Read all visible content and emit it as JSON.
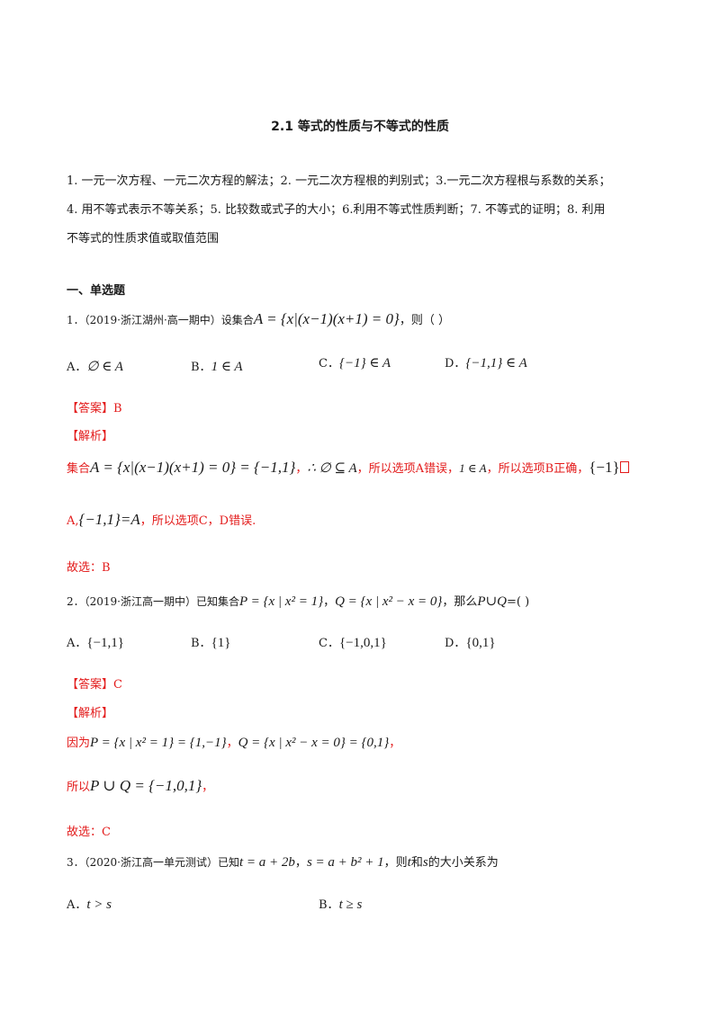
{
  "title": "2.1  等式的性质与不等式的性质",
  "intro": {
    "line1": "1. 一元一次方程、一元二次方程的解法；2. 一元二次方程根的判别式；3.一元二次方程根与系数的关系；",
    "line2": "4. 用不等式表示不等关系；5. 比较数或式子的大小；6.利用不等式性质判断；7. 不等式的证明；8. 利用",
    "line3": "不等式的性质求值或取值范围"
  },
  "section_heading": "一、单选题",
  "q1": {
    "stem": "1．（2019·浙江湖州·高一期中）设集合",
    "formula": "A = {x|(x−1)(x+1) = 0}",
    "tail": "，则（      ）",
    "options": [
      {
        "label": "A．",
        "expr": "∅ ∈ A"
      },
      {
        "label": "B．",
        "expr": "1 ∈ A"
      },
      {
        "label": "C．",
        "expr": "{−1} ∈ A"
      },
      {
        "label": "D．",
        "expr": "{−1,1} ∈ A"
      }
    ],
    "answer_tag": "【答案】B",
    "analysis_tag": "【解析】",
    "sol_l1_a": "集合",
    "sol_l1_f1": "A = {x|(x−1)(x+1) = 0} = {−1,1}",
    "sol_l1_b": "，",
    "sol_l1_f2": "∴ ∅ ⊆ A",
    "sol_l1_c": "，所以选项A错误，",
    "sol_l1_f3": "1 ∈ A",
    "sol_l1_d": "，所以选项B正确，",
    "sol_l1_f4": "{−1}",
    "sol_l2_a": "A,",
    "sol_l2_f1": "{−1,1}=A",
    "sol_l2_b": "，所以选项C，D错误.",
    "conclusion": "故选：B"
  },
  "q2": {
    "stem": "2．（2019·浙江高一期中）已知集合",
    "f1": "P = {x | x² = 1}",
    "mid": "，",
    "f2": "Q = {x | x² − x = 0}",
    "mid2": "，那么",
    "f3": "P∪Q",
    "tail": "=(      )",
    "options": [
      {
        "label": "A．",
        "expr": "{−1,1}"
      },
      {
        "label": "B．",
        "expr": "{1}"
      },
      {
        "label": "C．",
        "expr": "{−1,0,1}"
      },
      {
        "label": "D．",
        "expr": "{0,1}"
      }
    ],
    "answer_tag": "【答案】C",
    "analysis_tag": "【解析】",
    "sol_l1_a": "因为",
    "sol_l1_f1": "P = {x | x² = 1} = {1,−1}",
    "sol_l1_b": "，",
    "sol_l1_f2": "Q = {x | x² − x = 0} = {0,1}",
    "sol_l1_c": "，",
    "sol_l2_a": "所以",
    "sol_l2_f1": "P ∪ Q = {−1,0,1}",
    "sol_l2_b": "，",
    "conclusion": "故选：C"
  },
  "q3": {
    "stem": "3．（2020·浙江高一单元测试）已知",
    "f1": "t = a + 2b",
    "mid": "，",
    "f2": "s = a + b² + 1",
    "mid2": "，则",
    "f3": "t",
    "mid3": "和",
    "f4": "s",
    "tail": "的大小关系为",
    "options": [
      {
        "label": "A．",
        "expr": "t > s"
      },
      {
        "label": "B．",
        "expr": "t ≥ s"
      }
    ]
  }
}
